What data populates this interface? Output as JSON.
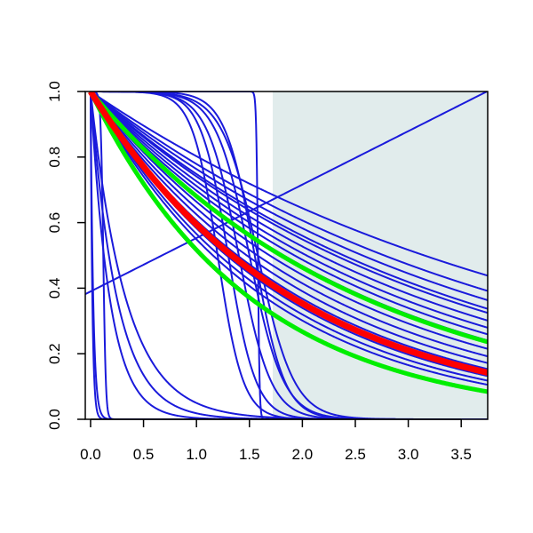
{
  "chart_data": {
    "type": "line",
    "title": "",
    "xlabel": "",
    "ylabel": "",
    "xlim": [
      -0.05,
      3.75
    ],
    "ylim": [
      0.0,
      1.0
    ],
    "x_ticks": [
      0.0,
      0.5,
      1.0,
      1.5,
      2.0,
      2.5,
      3.0,
      3.5
    ],
    "x_tick_labels": [
      "0.0",
      "0.5",
      "1.0",
      "1.5",
      "2.0",
      "2.5",
      "3.0",
      "3.5"
    ],
    "y_ticks": [
      0.0,
      0.2,
      0.4,
      0.6,
      0.8,
      1.0
    ],
    "y_tick_labels": [
      "0.0",
      "0.2",
      "0.4",
      "0.6",
      "0.8",
      "1.0"
    ],
    "shaded_region": {
      "x_start": 1.72,
      "x_end": 3.75,
      "color": "#e1ecec"
    },
    "grid": false,
    "legend": "none",
    "colors": {
      "background_curves": "#1a1adb",
      "highlight": "#ff0000",
      "bounds": "#00ee00",
      "shade": "#e1ecec"
    },
    "series": [
      {
        "kind": "exp",
        "rate": 0.22,
        "color": "#1a1adb",
        "width": 2
      },
      {
        "kind": "exp",
        "rate": 0.25,
        "color": "#1a1adb",
        "width": 2
      },
      {
        "kind": "exp",
        "rate": 0.27,
        "color": "#1a1adb",
        "width": 2
      },
      {
        "kind": "exp",
        "rate": 0.29,
        "color": "#1a1adb",
        "width": 2
      },
      {
        "kind": "exp",
        "rate": 0.3,
        "color": "#1a1adb",
        "width": 2
      },
      {
        "kind": "exp",
        "rate": 0.32,
        "color": "#1a1adb",
        "width": 2
      },
      {
        "kind": "exp",
        "rate": 0.34,
        "color": "#1a1adb",
        "width": 2
      },
      {
        "kind": "exp",
        "rate": 0.36,
        "color": "#1a1adb",
        "width": 2
      },
      {
        "kind": "exp",
        "rate": 0.38,
        "color": "#1a1adb",
        "width": 2
      },
      {
        "kind": "exp",
        "rate": 0.41,
        "color": "#1a1adb",
        "width": 2
      },
      {
        "kind": "exp",
        "rate": 0.44,
        "color": "#1a1adb",
        "width": 2
      },
      {
        "kind": "exp",
        "rate": 0.47,
        "color": "#1a1adb",
        "width": 2
      },
      {
        "kind": "exp",
        "rate": 0.5,
        "color": "#1a1adb",
        "width": 2
      },
      {
        "kind": "exp",
        "rate": 0.54,
        "color": "#1a1adb",
        "width": 2
      },
      {
        "kind": "exp",
        "rate": 0.57,
        "color": "#1a1adb",
        "width": 2
      },
      {
        "kind": "exp",
        "rate": 0.6,
        "color": "#1a1adb",
        "width": 2
      },
      {
        "kind": "exp",
        "rate": 3.0,
        "color": "#1a1adb",
        "width": 2
      },
      {
        "kind": "exp",
        "rate": 4.0,
        "color": "#1a1adb",
        "width": 2
      },
      {
        "kind": "exp",
        "rate": 5.5,
        "color": "#1a1adb",
        "width": 2
      },
      {
        "kind": "exp",
        "rate": 40.0,
        "color": "#1a1adb",
        "width": 2
      },
      {
        "kind": "exp",
        "rate": 60.0,
        "color": "#1a1adb",
        "width": 2
      },
      {
        "kind": "logistic",
        "mid": 0.12,
        "scale": 0.012,
        "color": "#1a1adb",
        "width": 2
      },
      {
        "kind": "logistic",
        "mid": 1.58,
        "scale": 0.008,
        "color": "#1a1adb",
        "width": 2
      },
      {
        "kind": "logistic",
        "mid": 1.55,
        "scale": 0.14,
        "color": "#1a1adb",
        "width": 2
      },
      {
        "kind": "logistic",
        "mid": 1.5,
        "scale": 0.16,
        "color": "#1a1adb",
        "width": 2
      },
      {
        "kind": "logistic",
        "mid": 1.58,
        "scale": 0.17,
        "color": "#1a1adb",
        "width": 2
      },
      {
        "kind": "logistic",
        "mid": 1.4,
        "scale": 0.15,
        "color": "#1a1adb",
        "width": 2
      },
      {
        "kind": "logistic",
        "mid": 1.3,
        "scale": 0.13,
        "color": "#1a1adb",
        "width": 2
      },
      {
        "kind": "logistic",
        "mid": 1.2,
        "scale": 0.12,
        "color": "#1a1adb",
        "width": 2
      },
      {
        "kind": "linear",
        "intercept": 0.39,
        "slope": 0.163,
        "color": "#1a1adb",
        "width": 2
      },
      {
        "kind": "exp",
        "rate": 0.385,
        "color": "#00ee00",
        "width": 5
      },
      {
        "kind": "exp",
        "rate": 0.66,
        "color": "#00ee00",
        "width": 5
      },
      {
        "kind": "exp",
        "rate": 0.52,
        "color": "#ff0000",
        "width": 7
      }
    ]
  }
}
